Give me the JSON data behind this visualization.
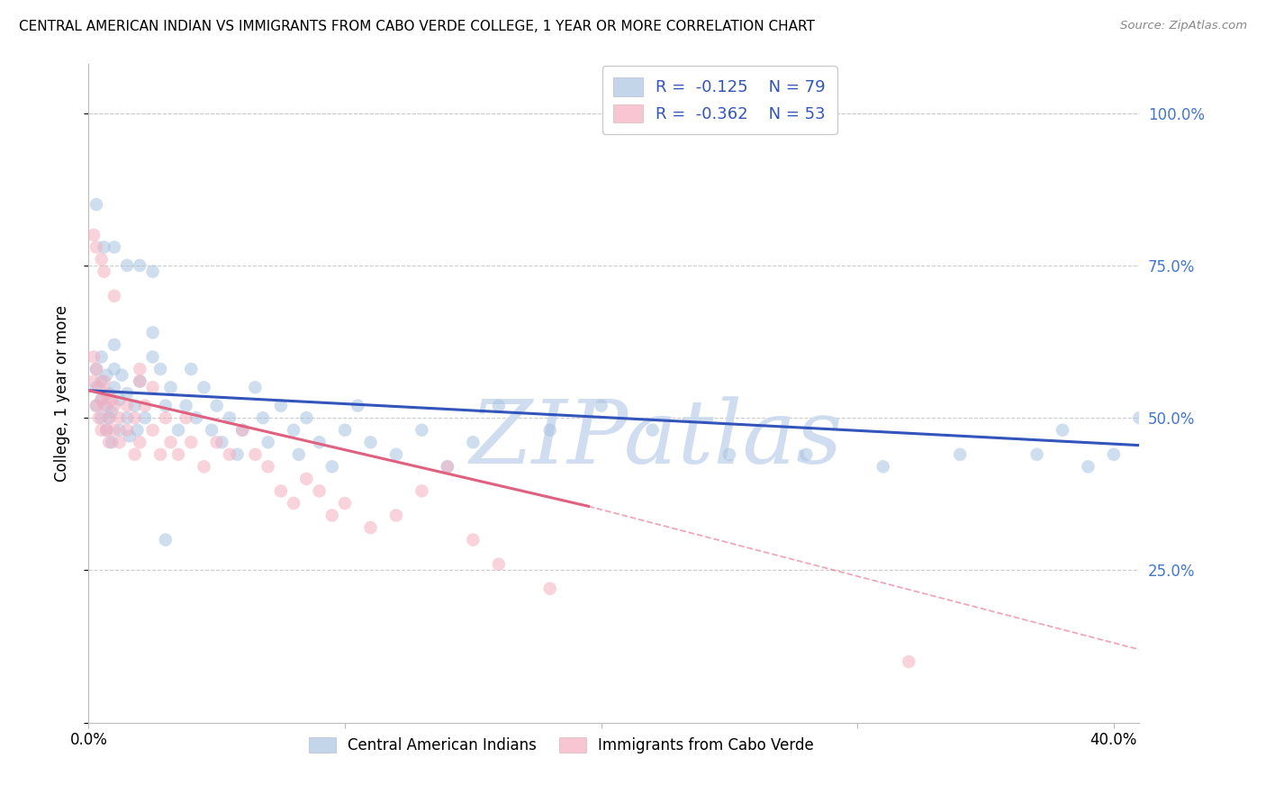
{
  "title": "CENTRAL AMERICAN INDIAN VS IMMIGRANTS FROM CABO VERDE COLLEGE, 1 YEAR OR MORE CORRELATION CHART",
  "source": "Source: ZipAtlas.com",
  "ylabel": "College, 1 year or more",
  "ytick_labels": [
    "",
    "25.0%",
    "50.0%",
    "75.0%",
    "100.0%"
  ],
  "blue_color": "#a8c4e0",
  "pink_color": "#f4afc0",
  "blue_line_color": "#3355bb",
  "pink_line_color": "#e06080",
  "ylabel_color": "#000000",
  "yaxis_label_color": "#4477cc",
  "watermark": "ZIPatlas",
  "watermark_color": "#c8d8ee",
  "blue_R": -0.125,
  "blue_N": 79,
  "pink_R": -0.362,
  "pink_N": 53,
  "xlim": [
    0.0,
    0.41
  ],
  "ylim": [
    0.0,
    1.08
  ],
  "blue_line_x0": 0.0,
  "blue_line_y0": 0.545,
  "blue_line_x1": 0.41,
  "blue_line_y1": 0.455,
  "pink_line_x0": 0.0,
  "pink_line_y0": 0.545,
  "pink_line_x1_solid": 0.195,
  "pink_line_y1_solid": 0.355,
  "pink_line_x1_dash": 0.41,
  "pink_line_y1_dash": 0.12,
  "blue_scatter_x": [
    0.003,
    0.003,
    0.003,
    0.005,
    0.005,
    0.005,
    0.005,
    0.007,
    0.007,
    0.007,
    0.008,
    0.008,
    0.009,
    0.009,
    0.01,
    0.01,
    0.01,
    0.012,
    0.012,
    0.013,
    0.015,
    0.015,
    0.016,
    0.018,
    0.019,
    0.02,
    0.022,
    0.025,
    0.025,
    0.028,
    0.03,
    0.032,
    0.035,
    0.038,
    0.04,
    0.042,
    0.045,
    0.048,
    0.05,
    0.052,
    0.055,
    0.058,
    0.06,
    0.065,
    0.068,
    0.07,
    0.075,
    0.08,
    0.082,
    0.085,
    0.09,
    0.095,
    0.1,
    0.105,
    0.11,
    0.12,
    0.13,
    0.14,
    0.15,
    0.16,
    0.18,
    0.2,
    0.22,
    0.25,
    0.28,
    0.31,
    0.34,
    0.37,
    0.38,
    0.39,
    0.4,
    0.41,
    0.003,
    0.006,
    0.01,
    0.015,
    0.02,
    0.025,
    0.03
  ],
  "blue_scatter_y": [
    0.52,
    0.55,
    0.58,
    0.5,
    0.53,
    0.56,
    0.6,
    0.48,
    0.52,
    0.57,
    0.5,
    0.54,
    0.46,
    0.51,
    0.55,
    0.58,
    0.62,
    0.48,
    0.53,
    0.57,
    0.5,
    0.54,
    0.47,
    0.52,
    0.48,
    0.56,
    0.5,
    0.6,
    0.64,
    0.58,
    0.52,
    0.55,
    0.48,
    0.52,
    0.58,
    0.5,
    0.55,
    0.48,
    0.52,
    0.46,
    0.5,
    0.44,
    0.48,
    0.55,
    0.5,
    0.46,
    0.52,
    0.48,
    0.44,
    0.5,
    0.46,
    0.42,
    0.48,
    0.52,
    0.46,
    0.44,
    0.48,
    0.42,
    0.46,
    0.52,
    0.48,
    0.52,
    0.48,
    0.44,
    0.44,
    0.42,
    0.44,
    0.44,
    0.48,
    0.42,
    0.44,
    0.5,
    0.85,
    0.78,
    0.78,
    0.75,
    0.75,
    0.74,
    0.3
  ],
  "pink_scatter_x": [
    0.002,
    0.002,
    0.003,
    0.003,
    0.004,
    0.004,
    0.005,
    0.005,
    0.006,
    0.006,
    0.007,
    0.007,
    0.008,
    0.008,
    0.009,
    0.01,
    0.01,
    0.012,
    0.012,
    0.015,
    0.015,
    0.018,
    0.018,
    0.02,
    0.02,
    0.022,
    0.025,
    0.028,
    0.03,
    0.032,
    0.035,
    0.038,
    0.04,
    0.045,
    0.05,
    0.055,
    0.06,
    0.065,
    0.07,
    0.075,
    0.08,
    0.085,
    0.09,
    0.095,
    0.1,
    0.11,
    0.12,
    0.13,
    0.14,
    0.15,
    0.16,
    0.18,
    0.32
  ],
  "pink_scatter_y": [
    0.6,
    0.56,
    0.58,
    0.52,
    0.55,
    0.5,
    0.53,
    0.48,
    0.56,
    0.52,
    0.54,
    0.48,
    0.5,
    0.46,
    0.53,
    0.52,
    0.48,
    0.5,
    0.46,
    0.52,
    0.48,
    0.44,
    0.5,
    0.46,
    0.56,
    0.52,
    0.48,
    0.44,
    0.5,
    0.46,
    0.44,
    0.5,
    0.46,
    0.42,
    0.46,
    0.44,
    0.48,
    0.44,
    0.42,
    0.38,
    0.36,
    0.4,
    0.38,
    0.34,
    0.36,
    0.32,
    0.34,
    0.38,
    0.42,
    0.3,
    0.26,
    0.22,
    0.1
  ],
  "pink_high_x": [
    0.002,
    0.003,
    0.005,
    0.006,
    0.01,
    0.02,
    0.025
  ],
  "pink_high_y": [
    0.8,
    0.78,
    0.76,
    0.74,
    0.7,
    0.58,
    0.55
  ]
}
